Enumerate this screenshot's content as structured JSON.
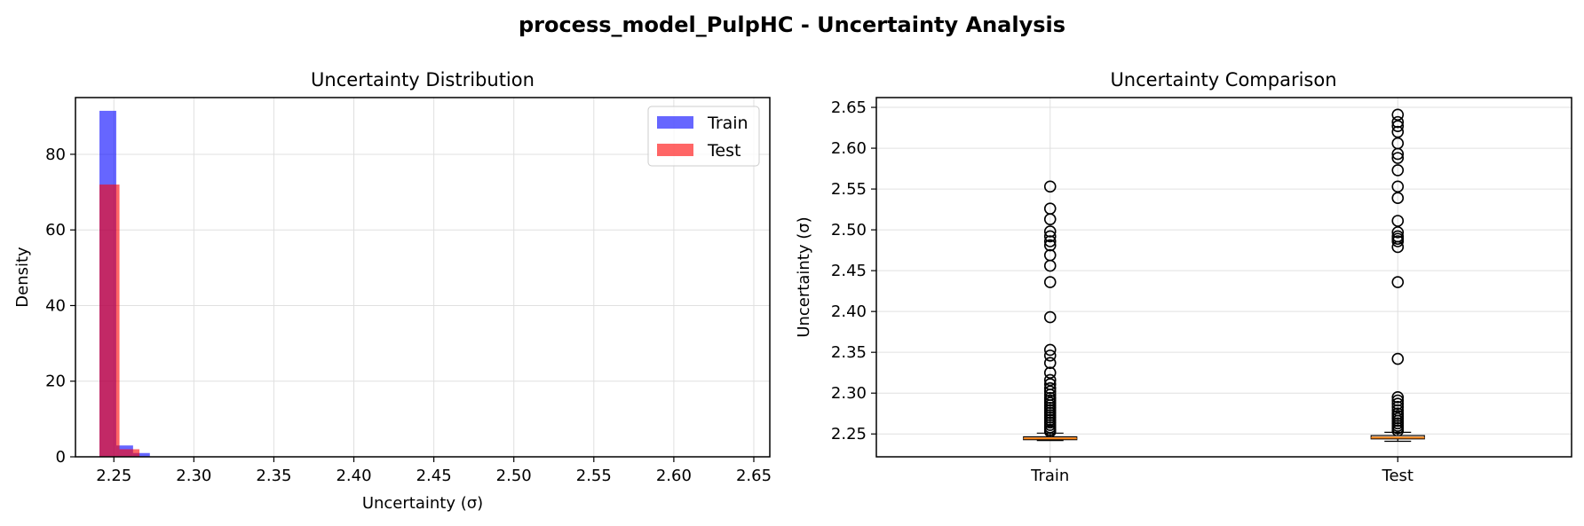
{
  "figure_title": "process_model_PulpHC - Uncertainty Analysis",
  "chart_data": [
    {
      "type": "histogram",
      "title": "Uncertainty Distribution",
      "xlabel": "Uncertainty (σ)",
      "ylabel": "Density",
      "xlim": [
        2.226,
        2.66
      ],
      "ylim": [
        0,
        95
      ],
      "xticks": [
        2.25,
        2.3,
        2.35,
        2.4,
        2.45,
        2.5,
        2.55,
        2.6,
        2.65
      ],
      "xtick_labels": [
        "2.25",
        "2.30",
        "2.35",
        "2.40",
        "2.45",
        "2.50",
        "2.55",
        "2.60",
        "2.65"
      ],
      "yticks": [
        0,
        20,
        40,
        60,
        80
      ],
      "ytick_labels": [
        "0",
        "20",
        "40",
        "60",
        "80"
      ],
      "grid": true,
      "legend_position": "top-right",
      "series": [
        {
          "name": "Train",
          "color": "#0000ff",
          "alpha": 0.6,
          "bins": [
            [
              2.241,
              2.2515,
              91.5
            ],
            [
              2.2515,
              2.262,
              3.0
            ],
            [
              2.262,
              2.2725,
              1.0
            ]
          ]
        },
        {
          "name": "Test",
          "color": "#ff0000",
          "alpha": 0.6,
          "bins": [
            [
              2.241,
              2.2535,
              72.0
            ],
            [
              2.2535,
              2.266,
              2.0
            ]
          ]
        }
      ]
    },
    {
      "type": "box",
      "title": "Uncertainty Comparison",
      "ylabel": "Uncertainty (σ)",
      "ylim": [
        2.222,
        2.662
      ],
      "yticks": [
        2.25,
        2.3,
        2.35,
        2.4,
        2.45,
        2.5,
        2.55,
        2.6,
        2.65
      ],
      "ytick_labels": [
        "2.25",
        "2.30",
        "2.35",
        "2.40",
        "2.45",
        "2.50",
        "2.55",
        "2.60",
        "2.65"
      ],
      "categories": [
        "Train",
        "Test"
      ],
      "grid": true,
      "median_color": "#ff7f0e",
      "boxes": [
        {
          "name": "Train",
          "whisker_low": 2.242,
          "q1": 2.243,
          "median": 2.2445,
          "q3": 2.2465,
          "whisker_high": 2.251,
          "outliers": [
            2.553,
            2.526,
            2.513,
            2.498,
            2.492,
            2.486,
            2.481,
            2.469,
            2.456,
            2.436,
            2.393,
            2.353,
            2.346,
            2.337,
            2.325,
            2.316,
            2.311,
            2.306,
            2.302,
            2.298,
            2.294,
            2.291,
            2.288,
            2.285,
            2.282,
            2.279,
            2.276,
            2.273,
            2.27,
            2.267,
            2.264,
            2.261,
            2.258,
            2.255,
            2.253
          ]
        },
        {
          "name": "Test",
          "whisker_low": 2.241,
          "q1": 2.244,
          "median": 2.2455,
          "q3": 2.248,
          "whisker_high": 2.252,
          "outliers": [
            2.641,
            2.632,
            2.627,
            2.62,
            2.606,
            2.593,
            2.588,
            2.573,
            2.553,
            2.539,
            2.511,
            2.497,
            2.492,
            2.489,
            2.486,
            2.479,
            2.436,
            2.342,
            2.295,
            2.291,
            2.287,
            2.283,
            2.279,
            2.275,
            2.272,
            2.269,
            2.266,
            2.263,
            2.26,
            2.257,
            2.254
          ]
        }
      ]
    }
  ]
}
